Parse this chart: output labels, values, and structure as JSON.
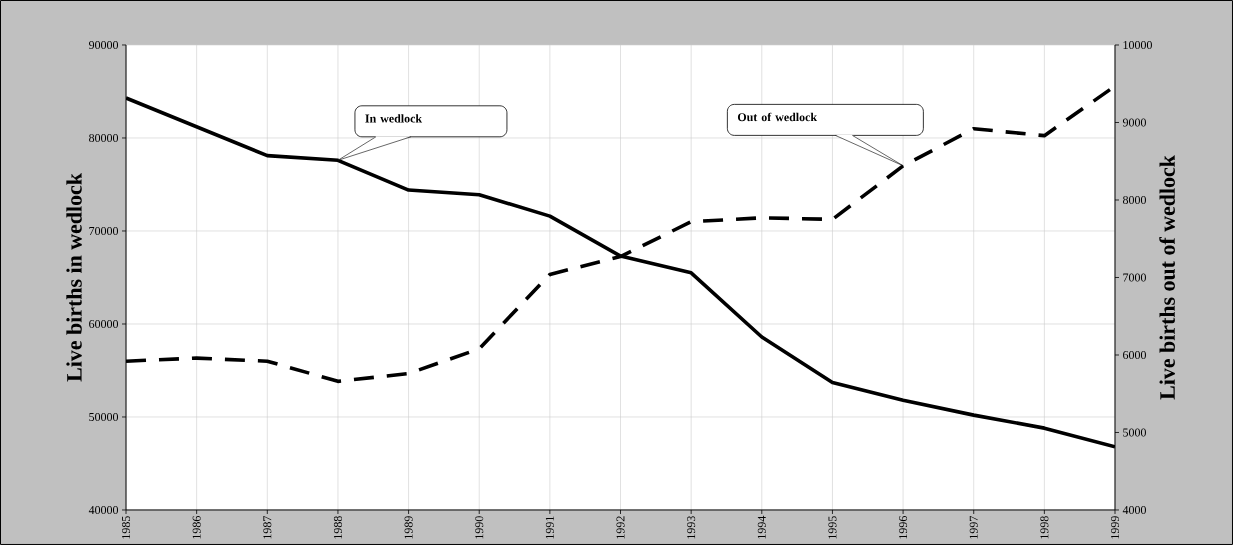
{
  "chart_data": {
    "type": "line",
    "x": [
      1985,
      1986,
      1987,
      1988,
      1989,
      1990,
      1991,
      1992,
      1993,
      1994,
      1995,
      1996,
      1997,
      1998,
      1999
    ],
    "series": [
      {
        "color": "#000000",
        "line_style": "solid",
        "values": [
          84300,
          81200,
          78100,
          77600,
          74400,
          73900,
          71600,
          67300,
          65500,
          58600,
          53700,
          51800,
          50200,
          48800,
          46800
        ]
      },
      {
        "color": "#000000",
        "line_style": "dashed",
        "axis": "y2",
        "values": [
          5920,
          5960,
          5920,
          5660,
          5760,
          6080,
          7040,
          7270,
          7720,
          7770,
          7750,
          8440,
          8920,
          8830,
          9470
        ]
      }
    ],
    "ylabel": "Live births in wedlock",
    "y2label": "Live births out of wedlock",
    "xlim": [
      1985,
      1999
    ],
    "xticks": [
      1985,
      1986,
      1987,
      1988,
      1989,
      1990,
      1991,
      1992,
      1993,
      1994,
      1995,
      1996,
      1997,
      1998,
      1999
    ],
    "ylim": [
      40000,
      90000
    ],
    "yticks": [
      40000,
      50000,
      60000,
      70000,
      80000,
      90000
    ],
    "y2lim": [
      4000,
      10000
    ],
    "y2ticks": [
      4000,
      5000,
      6000,
      7000,
      8000,
      9000,
      10000
    ],
    "grid": true,
    "annotations": [
      {
        "text": "In wedlock",
        "x": 1988,
        "y": 77600
      },
      "Out of wedlock"
    ]
  }
}
